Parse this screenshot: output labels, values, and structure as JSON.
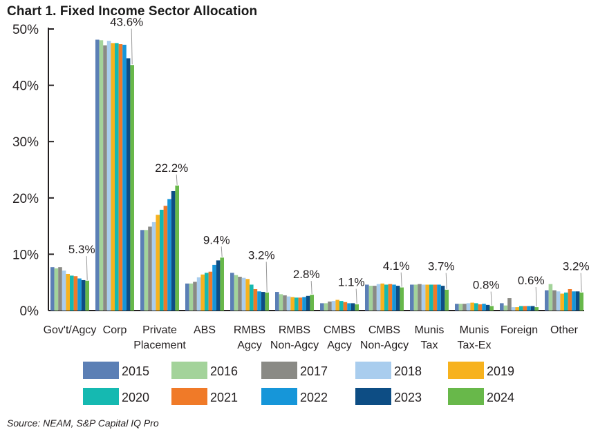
{
  "title": "Chart 1. Fixed Income Sector Allocation",
  "source": "Source: NEAM, S&P Capital IQ Pro",
  "colors": {
    "2015": "#5b7fb5",
    "2016": "#a3d39a",
    "2017": "#8a8a85",
    "2018": "#a9cdee",
    "2019": "#f7b21e",
    "2020": "#15b9b1",
    "2021": "#f07a28",
    "2022": "#1696d9",
    "2023": "#0d4d84",
    "2024": "#68b84a"
  },
  "chart_data": {
    "type": "bar",
    "title": "Chart 1. Fixed Income Sector Allocation",
    "xlabel": "",
    "ylabel": "",
    "ylim": [
      0,
      50
    ],
    "yticks": [
      "0%",
      "10%",
      "20%",
      "30%",
      "40%",
      "50%"
    ],
    "grid": false,
    "legend_position": "bottom",
    "categories": [
      [
        "Gov't/Agcy"
      ],
      [
        "Corp"
      ],
      [
        "Private",
        "Placement"
      ],
      [
        "ABS"
      ],
      [
        "RMBS",
        "Agcy"
      ],
      [
        "RMBS",
        "Non-Agcy"
      ],
      [
        "CMBS",
        "Agcy"
      ],
      [
        "CMBS",
        "Non-Agcy"
      ],
      [
        "Munis",
        "Tax"
      ],
      [
        "Munis",
        "Tax-Ex"
      ],
      [
        "Foreign"
      ],
      [
        "Other"
      ]
    ],
    "series": [
      {
        "name": "2015",
        "values": [
          7.7,
          48.1,
          14.3,
          4.8,
          6.7,
          3.3,
          1.3,
          4.6,
          4.6,
          1.2,
          1.3,
          3.6
        ]
      },
      {
        "name": "2016",
        "values": [
          7.5,
          48.0,
          14.3,
          4.8,
          6.3,
          2.9,
          1.3,
          4.4,
          4.6,
          1.2,
          0.9,
          4.7
        ]
      },
      {
        "name": "2017",
        "values": [
          7.7,
          47.1,
          14.9,
          5.1,
          6.0,
          2.7,
          1.6,
          4.4,
          4.7,
          1.2,
          2.2,
          3.6
        ]
      },
      {
        "name": "2018",
        "values": [
          7.1,
          47.9,
          15.7,
          5.9,
          5.8,
          2.5,
          1.7,
          4.7,
          4.6,
          1.3,
          0.6,
          3.4
        ]
      },
      {
        "name": "2019",
        "values": [
          6.5,
          47.5,
          17.0,
          6.4,
          5.6,
          2.4,
          1.9,
          4.8,
          4.6,
          1.4,
          0.6,
          3.0
        ]
      },
      {
        "name": "2020",
        "values": [
          6.2,
          47.5,
          17.9,
          6.7,
          4.6,
          2.3,
          1.7,
          4.6,
          4.6,
          1.3,
          0.8,
          3.2
        ]
      },
      {
        "name": "2021",
        "values": [
          6.1,
          47.3,
          18.6,
          6.9,
          3.8,
          2.3,
          1.5,
          4.7,
          4.6,
          1.1,
          0.8,
          3.8
        ]
      },
      {
        "name": "2022",
        "values": [
          5.7,
          47.2,
          19.8,
          8.1,
          3.4,
          2.4,
          1.3,
          4.6,
          4.6,
          1.2,
          0.8,
          3.4
        ]
      },
      {
        "name": "2023",
        "values": [
          5.4,
          44.8,
          21.2,
          8.9,
          3.3,
          2.6,
          1.3,
          4.4,
          4.4,
          1.0,
          0.8,
          3.4
        ]
      },
      {
        "name": "2024",
        "values": [
          5.3,
          43.6,
          22.2,
          9.4,
          3.2,
          2.8,
          1.1,
          4.1,
          3.7,
          0.8,
          0.6,
          3.2
        ]
      }
    ],
    "data_labels": [
      "5.3%",
      "43.6%",
      "22.2%",
      "9.4%",
      "3.2%",
      "2.8%",
      "1.1%",
      "4.1%",
      "3.7%",
      "0.8%",
      "0.6%",
      "3.2%"
    ]
  }
}
